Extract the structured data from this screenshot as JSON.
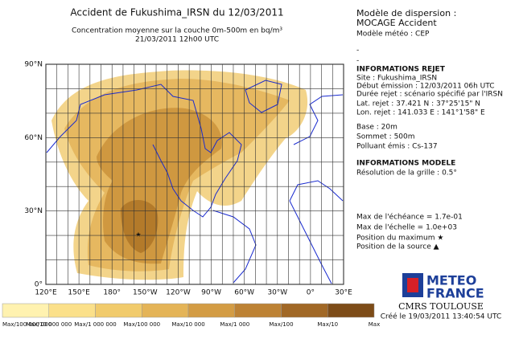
{
  "header": {
    "title": "Accident de Fukushima_IRSN du 12/03/2011",
    "subtitle": "Concentration moyenne sur la couche 0m-500m en bq/m³",
    "date": "21/03/2011 12h00 UTC"
  },
  "panel": {
    "lines": [
      "Modèle de dispersion :",
      "MOCAGE Accident",
      "Modèle météo : CEP",
      "-",
      "-",
      "INFORMATIONS REJET",
      "Site : Fukushima_IRSN",
      "Début émission : 12/03/2011 06h UTC",
      "Durée rejet : scénario spécifié par l'IRSN",
      "Lat. rejet : 37.421 N : 37°25'15\" N",
      "Lon. rejet : 141.033 E : 141°1'58\" E",
      "Base : 20m",
      "Sommet : 500m",
      "Polluant émis : Cs-137",
      "INFORMATIONS MODELE",
      "Résolution de la grille : 0.5°",
      "Max de l'échéance = 1.7e-01",
      "Max de l'échelle = 1.0e+03",
      "Position du maximum ★",
      "Position de la source ▲"
    ]
  },
  "map": {
    "lat_labels": [
      "90°N",
      "60°N",
      "30°N",
      "0°"
    ],
    "lon_labels": [
      "120°E",
      "150°E",
      "180°",
      "150°W",
      "120°W",
      "90°W",
      "60°W",
      "30°W",
      "0°",
      "30°E"
    ]
  },
  "legend": {
    "labels": [
      "Max/100 000 000",
      "Max/10 000 000",
      "Max/1 000 000",
      "Max/100 000",
      "Max/10 000",
      "Max/1 000",
      "Max/100",
      "Max/10",
      "Max"
    ]
  },
  "logo": {
    "line1": "METEO",
    "line2": "FRANCE",
    "center": "CMRS TOULOUSE",
    "created": "Créé le 19/03/2011 13:40:54 UTC"
  }
}
